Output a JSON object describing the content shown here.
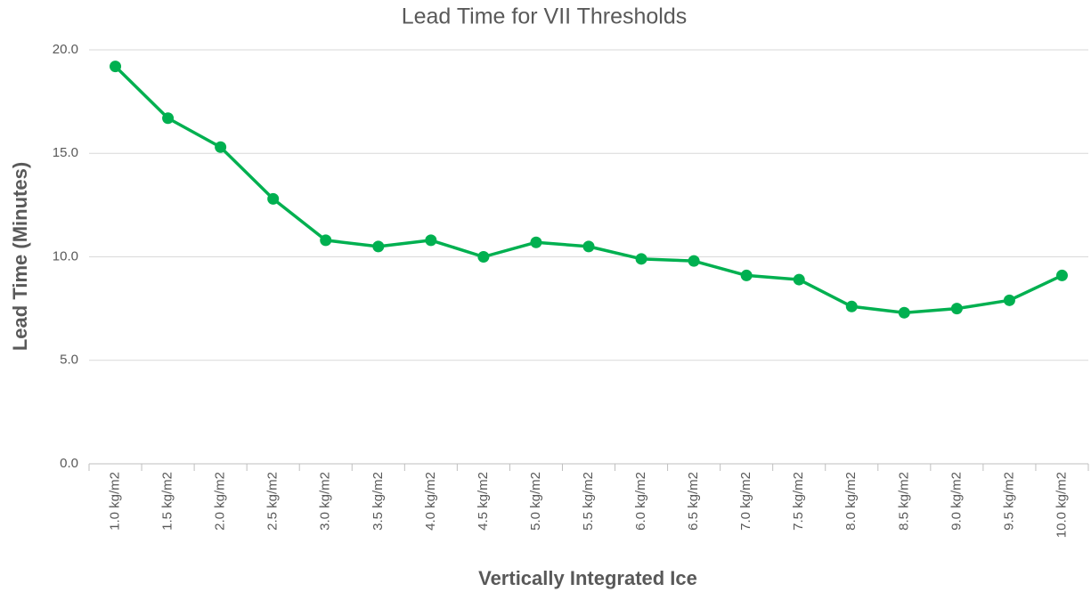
{
  "chart_data": {
    "type": "line",
    "title": "Lead Time for VII Thresholds",
    "x_label": "Vertically Integrated Ice",
    "y_label": "Lead Time (Minutes)",
    "categories": [
      "1.0 kg/m2",
      "1.5 kg/m2",
      "2.0 kg/m2",
      "2.5 kg/m2",
      "3.0 kg/m2",
      "3.5 kg/m2",
      "4.0 kg/m2",
      "4.5 kg/m2",
      "5.0 kg/m2",
      "5.5 kg/m2",
      "6.0 kg/m2",
      "6.5 kg/m2",
      "7.0 kg/m2",
      "7.5 kg/m2",
      "8.0 kg/m2",
      "8.5 kg/m2",
      "9.0 kg/m2",
      "9.5 kg/m2",
      "10.0 kg/m2"
    ],
    "values": [
      19.2,
      16.7,
      15.3,
      12.8,
      10.8,
      10.5,
      10.8,
      10.0,
      10.7,
      10.5,
      9.9,
      9.8,
      9.1,
      8.9,
      7.6,
      7.3,
      7.5,
      7.9,
      9.1
    ],
    "color": "#00b050",
    "ylim": [
      0,
      20
    ],
    "yticks": [
      {
        "value": 0,
        "label": "0.0"
      },
      {
        "value": 5,
        "label": "5.0"
      },
      {
        "value": 10,
        "label": "10.0"
      },
      {
        "value": 15,
        "label": "15.0"
      },
      {
        "value": 20,
        "label": "20.0"
      }
    ],
    "grid": true
  }
}
